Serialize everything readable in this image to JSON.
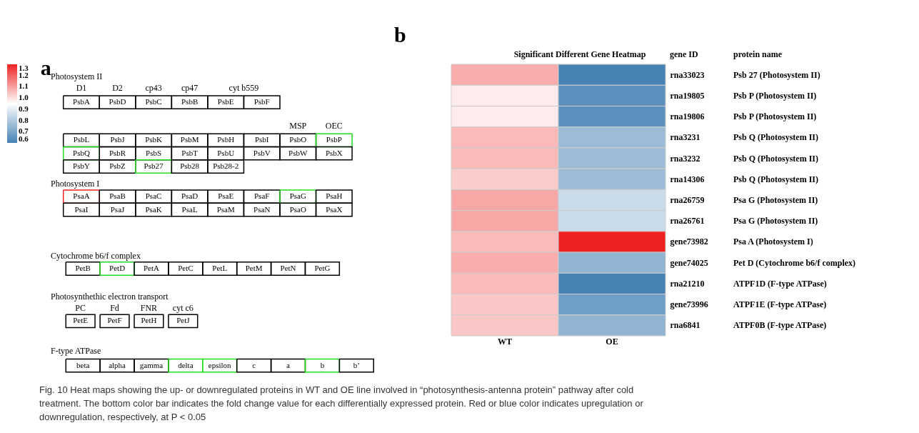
{
  "chart_data": [
    {
      "type": "other",
      "annotations": [
        "a",
        "Photosystem II",
        "D1",
        "D2",
        "cp43",
        "cp47",
        "cyt b559",
        "PsbA",
        "PsbD",
        "PsbC",
        "PsbB",
        "PsbE",
        "PsbF",
        "MSP",
        "OEC",
        "PsbL",
        "PsbJ",
        "PsbK",
        "PsbM",
        "PsbH",
        "PsbI",
        "PsbO",
        "PsbP",
        "PsbQ",
        "PsbR",
        "PsbS",
        "PsbT",
        "PsbU",
        "PsbV",
        "PsbW",
        "PsbX",
        "PsbY",
        "PsbZ",
        "Psb27",
        "Psb28",
        "Psb28-2",
        "Photosystem I",
        "PsaA",
        "PsaB",
        "PsaC",
        "PsaD",
        "PsaE",
        "PsaF",
        "PsaG",
        "PsaH",
        "PsaI",
        "PsaJ",
        "PsaK",
        "PsaL",
        "PsaM",
        "PsaN",
        "PsaO",
        "PsaX",
        "Cytochrome b6/f complex",
        "PetB",
        "PetD",
        "PetA",
        "PetC",
        "PetL",
        "PetM",
        "PetN",
        "PetG",
        "Photosynthethic electron transport",
        "PC",
        "Fd",
        "FNR",
        "cyt c6",
        "PetE",
        "PetF",
        "PetH",
        "PetJ",
        "F-type ATPase",
        "beta",
        "alpha",
        "gamma",
        "delta",
        "epsilon",
        "c",
        "a",
        "b",
        "b’"
      ],
      "colors": [
        "#000000",
        "#000000",
        "#000000",
        "#000000",
        "#000000",
        "#000000",
        "#000000",
        "#000000",
        "#000000",
        "#000000",
        "#000000",
        "#000000",
        "#000000",
        "#22dd22",
        "#22dd22",
        "#000000",
        "#000000",
        "#000000",
        "#000000",
        "#000000",
        "#000000",
        "#000000",
        "#000000",
        "#000000",
        "#22dd22",
        "#000000",
        "#000000",
        "#ee2222",
        "#000000",
        "#000000",
        "#000000",
        "#000000",
        "#000000",
        "#22dd22",
        "#000000",
        "#000000",
        "#000000",
        "#000000",
        "#000000",
        "#000000",
        "#000000",
        "#000000",
        "#000000",
        "#000000",
        "#22dd22",
        "#000000",
        "#000000",
        "#000000",
        "#000000",
        "#000000",
        "#000000",
        "#000000",
        "#000000",
        "#000000",
        "#000000",
        "#000000",
        "#000000",
        "#000000",
        "#22dd22",
        "#22dd22",
        "#000000",
        "#000000",
        "#22dd22",
        "#000000"
      ]
    },
    {
      "type": "heatmap",
      "title": "Significant Different Gene Heatmap",
      "categories": [
        "WT",
        "OE"
      ],
      "y_categories": [
        "rna33023",
        "rna19805",
        "rna19806",
        "rna3231",
        "rna3232",
        "rna14306",
        "rna26759",
        "rna26761",
        "gene73982",
        "gene74025",
        "rna21210",
        "gene73996",
        "rna6841"
      ],
      "y2_categories": [
        "Psb 27 (Photosystem II)",
        "Psb P (Photosystem II)",
        "Psb P (Photosystem II)",
        "Psb Q (Photosystem II)",
        "Psb Q (Photosystem II)",
        "Psb Q (Photosystem II)",
        "Psa G (Photosystem II)",
        "Psa G (Photosystem II)",
        "Psa A (Photosystem I)",
        "Pet D (Cytochrome b6/f complex)",
        "ATPF1D (F-type ATPase)",
        "ATPF1E (F-type ATPase)",
        "ATPF0B (F-type ATPase)"
      ],
      "cells": [
        [
          1.08,
          0.6
        ],
        [
          0.98,
          0.64
        ],
        [
          0.98,
          0.64
        ],
        [
          1.06,
          0.76
        ],
        [
          1.06,
          0.76
        ],
        [
          1.03,
          0.76
        ],
        [
          1.09,
          0.85
        ],
        [
          1.09,
          0.85
        ],
        [
          1.06,
          1.3
        ],
        [
          1.08,
          0.74
        ],
        [
          1.06,
          0.6
        ],
        [
          1.04,
          0.68
        ],
        [
          1.04,
          0.74
        ]
      ],
      "clim": [
        0.6,
        1.3
      ],
      "cticks": [
        {
          "value": 1.3,
          "label": "1.3"
        },
        {
          "value": 1.2,
          "label": "1.2"
        },
        {
          "value": 1.1,
          "label": "1.1"
        },
        {
          "value": 1.0,
          "label": "1.0"
        },
        {
          "value": 0.9,
          "label": "0.9"
        },
        {
          "value": 0.8,
          "label": "0.8"
        },
        {
          "value": 0.7,
          "label": "0.7"
        },
        {
          "value": 0.6,
          "label": "0.6"
        }
      ],
      "colors": [
        "#4682b4",
        "#ffffff",
        "#ee2222"
      ],
      "annotations": [
        "b",
        "gene ID",
        "protein name",
        "Fig. 10 Heat maps showing the up- or downregulated proteins in WT and OE line involved in “photosynthesis-antenna protein” pathway after cold treatment. The bottom color bar indicates the fold change value for each differentially expressed protein. Red or blue color indicates upregulation or downregulation, respectively, at P < 0.05"
      ]
    }
  ]
}
